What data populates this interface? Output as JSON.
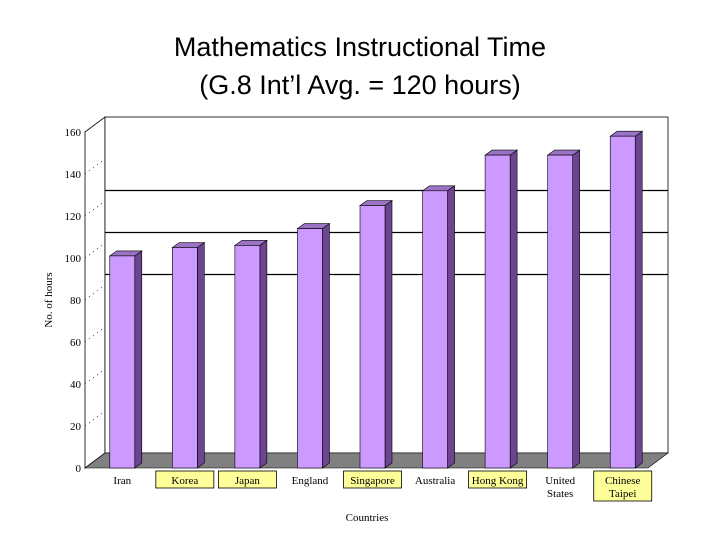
{
  "title_line1": "Mathematics Instructional Time",
  "title_line2": "(G.8 Int’l Avg. = 120 hours)",
  "chart_data": {
    "type": "bar",
    "categories": [
      [
        "Iran"
      ],
      [
        "Korea"
      ],
      [
        "Japan"
      ],
      [
        "England"
      ],
      [
        "Singapore"
      ],
      [
        "Australia"
      ],
      [
        "Hong Kong"
      ],
      [
        "United",
        "States"
      ],
      [
        "Chinese",
        "Taipei"
      ]
    ],
    "highlighted": [
      false,
      true,
      true,
      false,
      true,
      false,
      true,
      false,
      true
    ],
    "values": [
      101,
      105,
      106,
      114,
      125,
      132,
      149,
      149,
      158
    ],
    "xlabel": "Countries",
    "ylabel": "No. of hours",
    "ylim": [
      0,
      160
    ],
    "yticks": [
      0,
      20,
      40,
      60,
      80,
      100,
      120,
      140,
      160
    ],
    "reference_lines": [
      125,
      105,
      85
    ],
    "colors": {
      "bar_front": "#cc99ff",
      "bar_side": "#6b4590",
      "bar_top": "#9a72c6",
      "floor": "#808080",
      "label_highlight": "#ffff99"
    }
  }
}
